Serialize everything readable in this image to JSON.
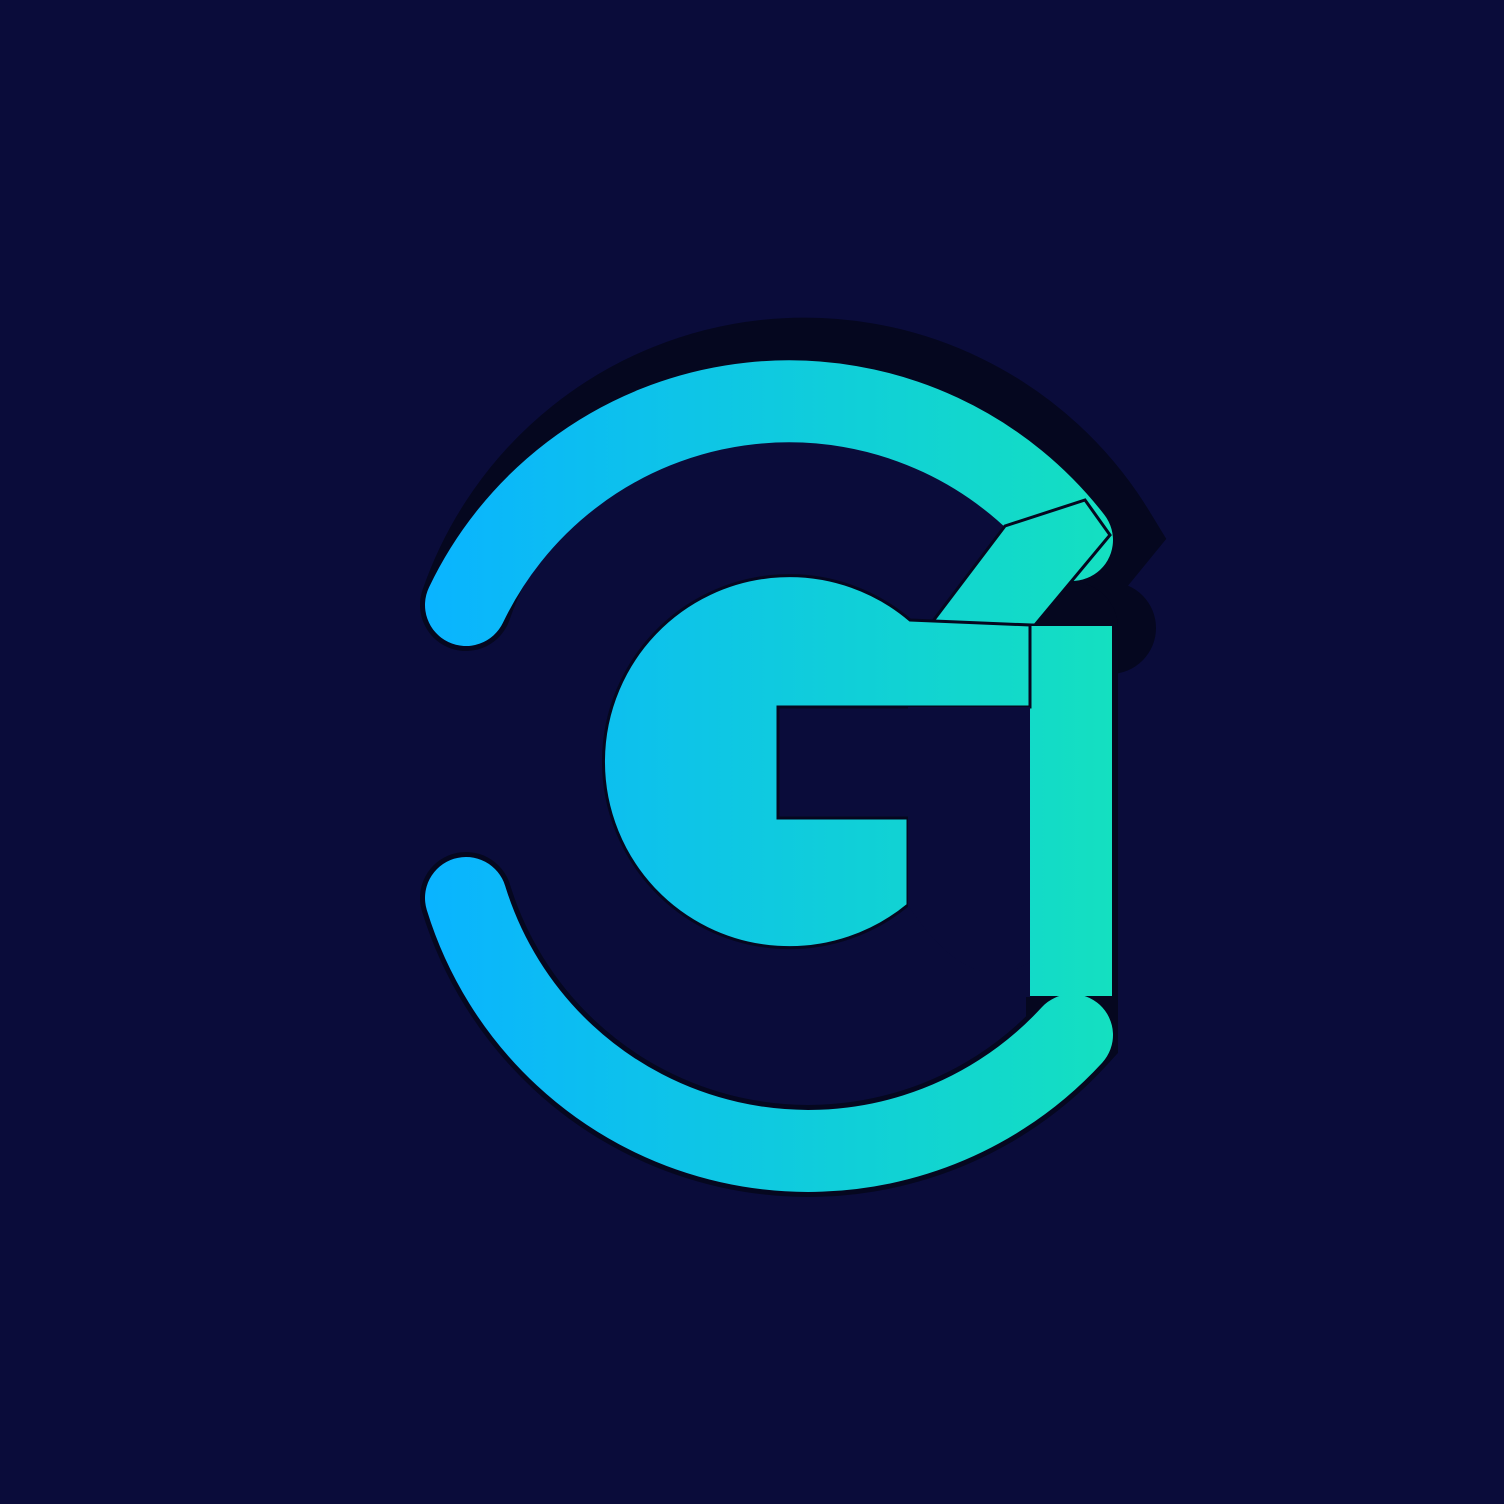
{
  "logo": {
    "name": "G monogram logo",
    "colors": {
      "background": "#0a0c3a",
      "gradient_start": "#0ab4ff",
      "gradient_end": "#14e0c0",
      "outline": "#05071f"
    }
  }
}
